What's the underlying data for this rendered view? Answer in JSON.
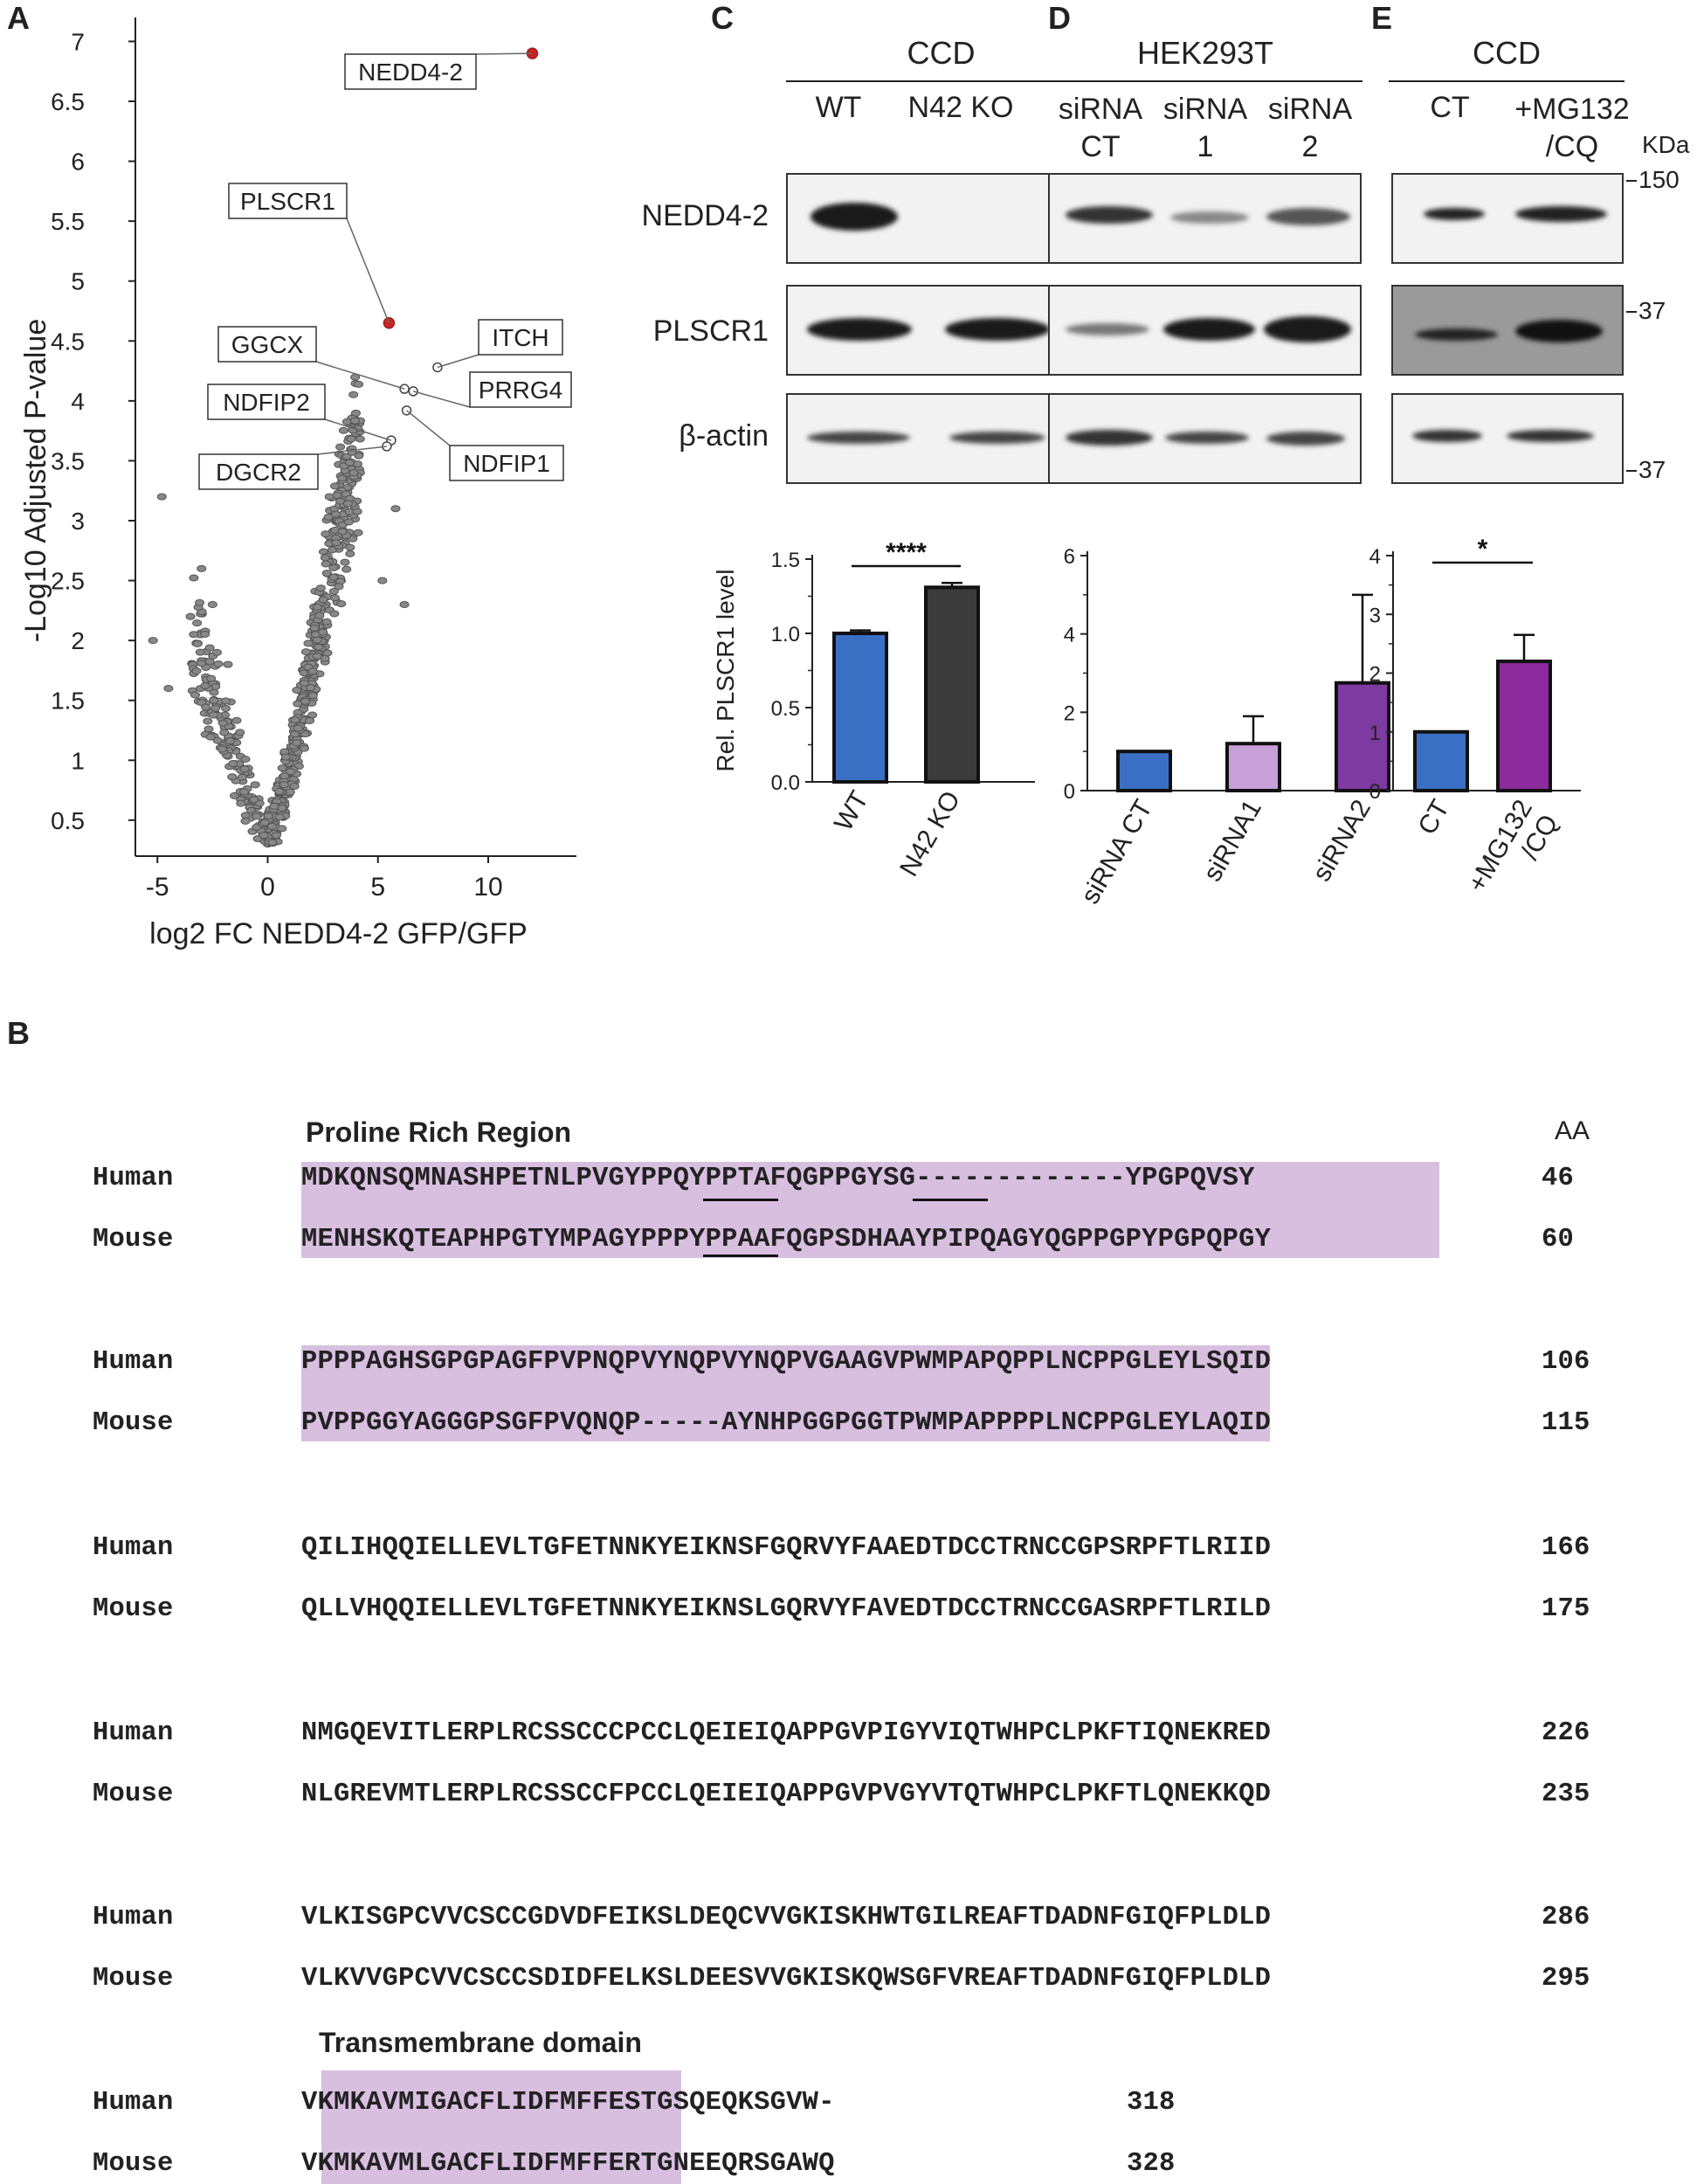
{
  "panels": {
    "A": "A",
    "B": "B",
    "C": "C",
    "D": "D",
    "E": "E"
  },
  "chart_data": [
    {
      "panel": "A",
      "type": "scatter",
      "xlabel": "log2 FC NEDD4-2 GFP/GFP",
      "ylabel": "-Log10 Adjusted P-value",
      "xticks": [
        "-5",
        "0",
        "5",
        "10"
      ],
      "xtick_values": [
        -5,
        0,
        5,
        10
      ],
      "yticks": [
        "0.5",
        "1",
        "1.5",
        "2",
        "2.5",
        "3",
        "3.5",
        "4",
        "4.5",
        "5",
        "5.5",
        "6",
        "6.5",
        "7"
      ],
      "ytick_values": [
        0.5,
        1,
        1.5,
        2,
        2.5,
        3,
        3.5,
        4,
        4.5,
        5,
        5.5,
        6,
        6.5,
        7
      ],
      "xlim": [
        -6,
        14
      ],
      "ylim": [
        0.2,
        7.2
      ],
      "highlight_color": "#cc2222",
      "point_color": "#888888",
      "highlighted": [
        {
          "label": "NEDD4-2",
          "x": 12.0,
          "y": 6.9
        },
        {
          "label": "PLSCR1",
          "x": 5.5,
          "y": 4.65
        }
      ],
      "labeled": [
        {
          "label": "ITCH",
          "x": 7.7,
          "y": 4.28
        },
        {
          "label": "GGCX",
          "x": 6.2,
          "y": 4.1
        },
        {
          "label": "PRRG4",
          "x": 6.6,
          "y": 4.08
        },
        {
          "label": "NDFIP1",
          "x": 6.3,
          "y": 3.92
        },
        {
          "label": "NDFIP2",
          "x": 5.6,
          "y": 3.67
        },
        {
          "label": "DGCR2",
          "x": 5.4,
          "y": 3.62
        }
      ]
    },
    {
      "panel": "C",
      "type": "bar",
      "ylabel": "Rel. PLSCR1 level",
      "categories": [
        "WT",
        "N42 KO"
      ],
      "values": [
        1.0,
        1.31
      ],
      "errors": [
        0.02,
        0.03
      ],
      "colors": [
        "#3a6fc4",
        "#3b3b3b"
      ],
      "yticks": [
        "0.0",
        "0.5",
        "1.0",
        "1.5"
      ],
      "ylim": [
        0,
        1.5
      ],
      "significance": "****"
    },
    {
      "panel": "D",
      "type": "bar",
      "categories": [
        "siRNA CT",
        "siRNA1",
        "siRNA2"
      ],
      "values": [
        1.0,
        1.2,
        2.75
      ],
      "errors": [
        0,
        0.7,
        2.25
      ],
      "colors": [
        "#3a6fc4",
        "#c79fd9",
        "#7d3aa0"
      ],
      "yticks": [
        "0",
        "2",
        "4",
        "6"
      ],
      "ylim": [
        0,
        6
      ]
    },
    {
      "panel": "E",
      "type": "bar",
      "categories": [
        "CT",
        "+MG132\n/CQ"
      ],
      "values": [
        1.0,
        2.2
      ],
      "errors": [
        0,
        0.45
      ],
      "colors": [
        "#3a6fc4",
        "#8c2a9e"
      ],
      "yticks": [
        "0",
        "1",
        "2",
        "3",
        "4"
      ],
      "ylim": [
        0,
        4
      ],
      "significance": "*"
    }
  ],
  "blots": {
    "C": {
      "cell": "CCD",
      "lanes": [
        "WT",
        "N42 KO"
      ]
    },
    "D": {
      "cell": "HEK293T",
      "lanes": [
        "siRNA\nCT",
        "siRNA\n1",
        "siRNA\n2"
      ]
    },
    "E": {
      "cell": "CCD",
      "lanes": [
        "CT",
        "+MG132\n/CQ"
      ]
    },
    "rows": [
      "NEDD4-2",
      "PLSCR1",
      "β-actin"
    ],
    "kda_label": "KDa",
    "markers": [
      "150",
      "37",
      "37"
    ]
  },
  "alignment": {
    "region_label": "Proline Rich Region",
    "tm_label": "Transmembrane domain",
    "aa_header": "AA",
    "highlight_color": "#d8bfe0",
    "blocks": [
      {
        "human": "MDKQNSQMNASHPETNLPVGYPPQYPPTAFQGPPGYSG-------------YPGPQVSY",
        "human_n": "46",
        "mouse": "MENHSKQTEAPHPGTYMPAGYPPPYPPAAFQGPSDHAAYPIPQAGYQGPPGPYPGPQPGY",
        "mouse_n": "60"
      },
      {
        "human": "PPPPAGHSGPGPAGFPVPNQPVYNQPVYNQPVGAAGVPWMPAPQPPLNCPPGLEYLSQID",
        "human_n": "106",
        "mouse": "PVPPGGYAGGGPSGFPVQNQP-----AYNHPGGPGGTPWMPAPPPPLNCPPGLEYLAQID",
        "mouse_n": "115"
      },
      {
        "human": "QILIHQQIELLEVLTGFETNNKYEIKNSFGQRVYFAAEDTDCCTRNCCGPSRPFTLRIID",
        "human_n": "166",
        "mouse": "QLLVHQQIELLEVLTGFETNNKYEIKNSLGQRVYFAVEDTDCCTRNCCGASRPFTLRILD",
        "mouse_n": "175"
      },
      {
        "human": "NMGQEVITLERPLRCSSCCCPCCLQEIEIQAPPGVPIGYVIQTWHPCLPKFTIQNEKRED",
        "human_n": "226",
        "mouse": "NLGREVMTLERPLRCSSCCFPCCLQEIEIQAPPGVPVGYVTQTWHPCLPKFTLQNEKKQD",
        "mouse_n": "235"
      },
      {
        "human": "VLKISGPCVVCSCCGDVDFEIKSLDEQCVVGKISKHWTGILREAFTDADNFGIQFPLDLD",
        "human_n": "286",
        "mouse": "VLKVVGPCVVCSCCSDIDFELKSLDEESVVGKISKQWSGFVREAFTDADNFGIQFPLDLD",
        "mouse_n": "295"
      },
      {
        "human": "VKMKAVMIGACFLIDFMFFESTGSQEQKSGVW-",
        "human_n": "318",
        "mouse": "VKMKAVMLGACFLIDFMFFERTGNEEQRSGAWQ",
        "mouse_n": "328"
      }
    ],
    "species": [
      "Human",
      "Mouse"
    ]
  }
}
